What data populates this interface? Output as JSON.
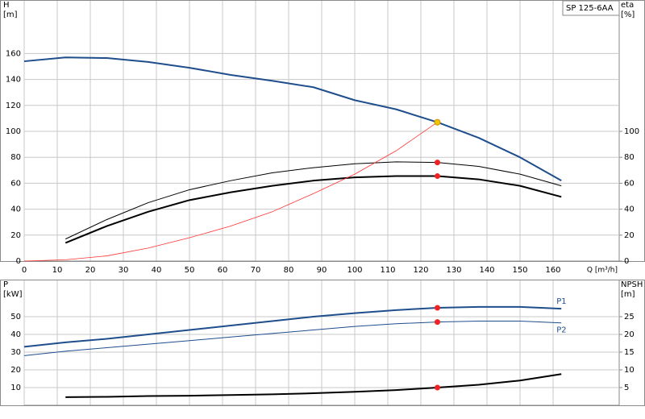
{
  "chart_data": [
    {
      "type": "line",
      "title": "SP 125-6AA",
      "xlabel": "Q [m³/h]",
      "ylabel": [
        "H",
        "[m]"
      ],
      "y2label": [
        "eta",
        "[%]"
      ],
      "xlim": [
        0,
        180
      ],
      "xticks": [
        0,
        10,
        20,
        30,
        40,
        50,
        60,
        70,
        80,
        90,
        100,
        110,
        120,
        130,
        140,
        150,
        160
      ],
      "xtick_labels": true,
      "ylim": [
        0,
        200
      ],
      "yticks": [
        0,
        20,
        40,
        60,
        80,
        100,
        120,
        140,
        160
      ],
      "y2lim": [
        0,
        200
      ],
      "y2ticks": [
        0,
        20,
        40,
        60,
        80,
        100
      ],
      "grid": true,
      "series": [
        {
          "color": "#1f4e8c",
          "width": 2,
          "axis": "y",
          "x": [
            0,
            12.5,
            25,
            37.5,
            50,
            62.5,
            75,
            87.5,
            100,
            112.5,
            125,
            137.5,
            150,
            162.5
          ],
          "values": [
            154,
            157,
            156.5,
            153.5,
            149,
            143.5,
            139,
            134,
            124,
            117,
            107,
            95,
            80,
            62
          ],
          "marker": {
            "x": 125,
            "y": 107,
            "color": "#f5c400"
          }
        },
        {
          "color": "#000000",
          "width": 1,
          "axis": "y2",
          "x": [
            12.5,
            25,
            37.5,
            50,
            62.5,
            75,
            87.5,
            100,
            112.5,
            125,
            137.5,
            150,
            162.5
          ],
          "values": [
            17,
            32,
            45,
            55,
            62,
            68,
            72,
            75,
            76.5,
            76,
            73,
            67,
            58
          ],
          "marker": {
            "x": 125,
            "y": 76,
            "color": "#ee2222"
          }
        },
        {
          "color": "#000000",
          "width": 2,
          "axis": "y2",
          "x": [
            12.5,
            25,
            37.5,
            50,
            62.5,
            75,
            87.5,
            100,
            112.5,
            125,
            137.5,
            150,
            162.5
          ],
          "values": [
            14,
            27,
            38,
            47,
            53,
            58,
            62,
            64.5,
            65.5,
            65.5,
            63,
            58,
            49.5
          ],
          "marker": {
            "x": 125,
            "y": 65.5,
            "color": "#ee2222"
          }
        },
        {
          "color": "#ff3333",
          "width": 0.8,
          "axis": "y",
          "x": [
            0,
            12.5,
            25,
            37.5,
            50,
            62.5,
            75,
            87.5,
            100,
            112.5,
            125
          ],
          "values": [
            0,
            1,
            4,
            10,
            18,
            27,
            38,
            52,
            67,
            85,
            107
          ]
        }
      ]
    },
    {
      "type": "line",
      "ylabel": [
        "P",
        "[kW]"
      ],
      "y2label": [
        "NPSH",
        "[m]"
      ],
      "xlim": [
        0,
        180
      ],
      "xticks": [
        0,
        10,
        20,
        30,
        40,
        50,
        60,
        70,
        80,
        90,
        100,
        110,
        120,
        130,
        140,
        150,
        160
      ],
      "xtick_labels": false,
      "ylim": [
        0,
        70
      ],
      "yticks": [
        10,
        20,
        30,
        40,
        50
      ],
      "y2lim": [
        0,
        35
      ],
      "y2ticks": [
        5,
        10,
        15,
        20,
        25
      ],
      "grid": true,
      "series": [
        {
          "name": "P1",
          "color": "#1f4e8c",
          "width": 2,
          "axis": "y",
          "x": [
            0,
            12.5,
            25,
            37.5,
            50,
            62.5,
            75,
            87.5,
            100,
            112.5,
            125,
            137.5,
            150,
            162.5
          ],
          "values": [
            33,
            35.5,
            37.5,
            40,
            42.5,
            45,
            47.5,
            50,
            52,
            53.7,
            55,
            55.5,
            55.5,
            54.5
          ],
          "marker": {
            "x": 125,
            "y": 55,
            "color": "#ee2222"
          }
        },
        {
          "name": "P2",
          "color": "#1f4e8c",
          "width": 1,
          "axis": "y",
          "x": [
            0,
            12.5,
            25,
            37.5,
            50,
            62.5,
            75,
            87.5,
            100,
            112.5,
            125,
            137.5,
            150,
            162.5
          ],
          "values": [
            28,
            30.5,
            32.5,
            34.5,
            36.5,
            38.5,
            40.5,
            42.5,
            44.5,
            46,
            47,
            47.5,
            47.5,
            46.5
          ],
          "marker": {
            "x": 125,
            "y": 47,
            "color": "#ee2222"
          }
        },
        {
          "color": "#000000",
          "width": 2,
          "axis": "y2",
          "x": [
            12.5,
            25,
            37.5,
            50,
            62.5,
            75,
            87.5,
            100,
            112.5,
            125,
            137.5,
            150,
            162.5
          ],
          "values": [
            2.3,
            2.4,
            2.6,
            2.7,
            2.9,
            3.1,
            3.4,
            3.8,
            4.3,
            5,
            5.8,
            7,
            8.8
          ],
          "marker": {
            "x": 125,
            "y": 5,
            "color": "#ee2222"
          }
        }
      ]
    }
  ]
}
